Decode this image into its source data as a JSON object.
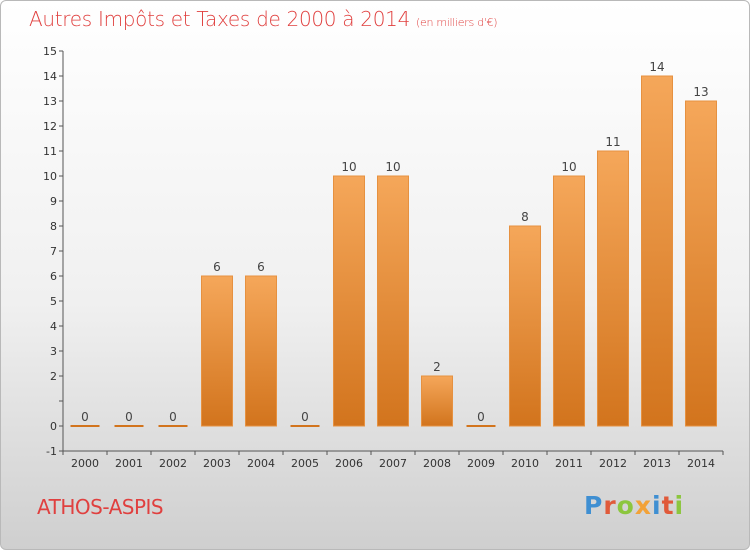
{
  "title": "Autres Impôts et Taxes de 2000 à 2014",
  "subtitle": "(en milliers d'€)",
  "commune": "ATHOS-ASPIS",
  "logo": {
    "text": "Proxiti",
    "colors": [
      "#3f8fd2",
      "#e05a3a",
      "#8cc63e",
      "#f2a238",
      "#3f8fd2",
      "#e05a3a",
      "#8cc63e"
    ]
  },
  "colors": {
    "bar_top": "#f5a75a",
    "bar_bottom": "#d2741d",
    "title": "#e0403f"
  },
  "chart_data": {
    "type": "bar",
    "title": "Autres Impôts et Taxes de 2000 à 2014",
    "xlabel": "",
    "ylabel": "",
    "categories": [
      "2000",
      "2001",
      "2002",
      "2003",
      "2004",
      "2005",
      "2006",
      "2007",
      "2008",
      "2009",
      "2010",
      "2011",
      "2012",
      "2013",
      "2014"
    ],
    "values": [
      0,
      0,
      0,
      6,
      6,
      0,
      10,
      10,
      2,
      0,
      8,
      10,
      11,
      14,
      13
    ],
    "ylim": [
      -1,
      15
    ],
    "yticks": [
      -1,
      0,
      1,
      2,
      3,
      4,
      5,
      6,
      7,
      8,
      9,
      10,
      11,
      12,
      13,
      14,
      15
    ],
    "ytick_labels": [
      "-1",
      "0",
      "",
      "2",
      "3",
      "4",
      "5",
      "6",
      "7",
      "8",
      "9",
      "10",
      "11",
      "12",
      "13",
      "14",
      "15"
    ],
    "grid": false
  }
}
